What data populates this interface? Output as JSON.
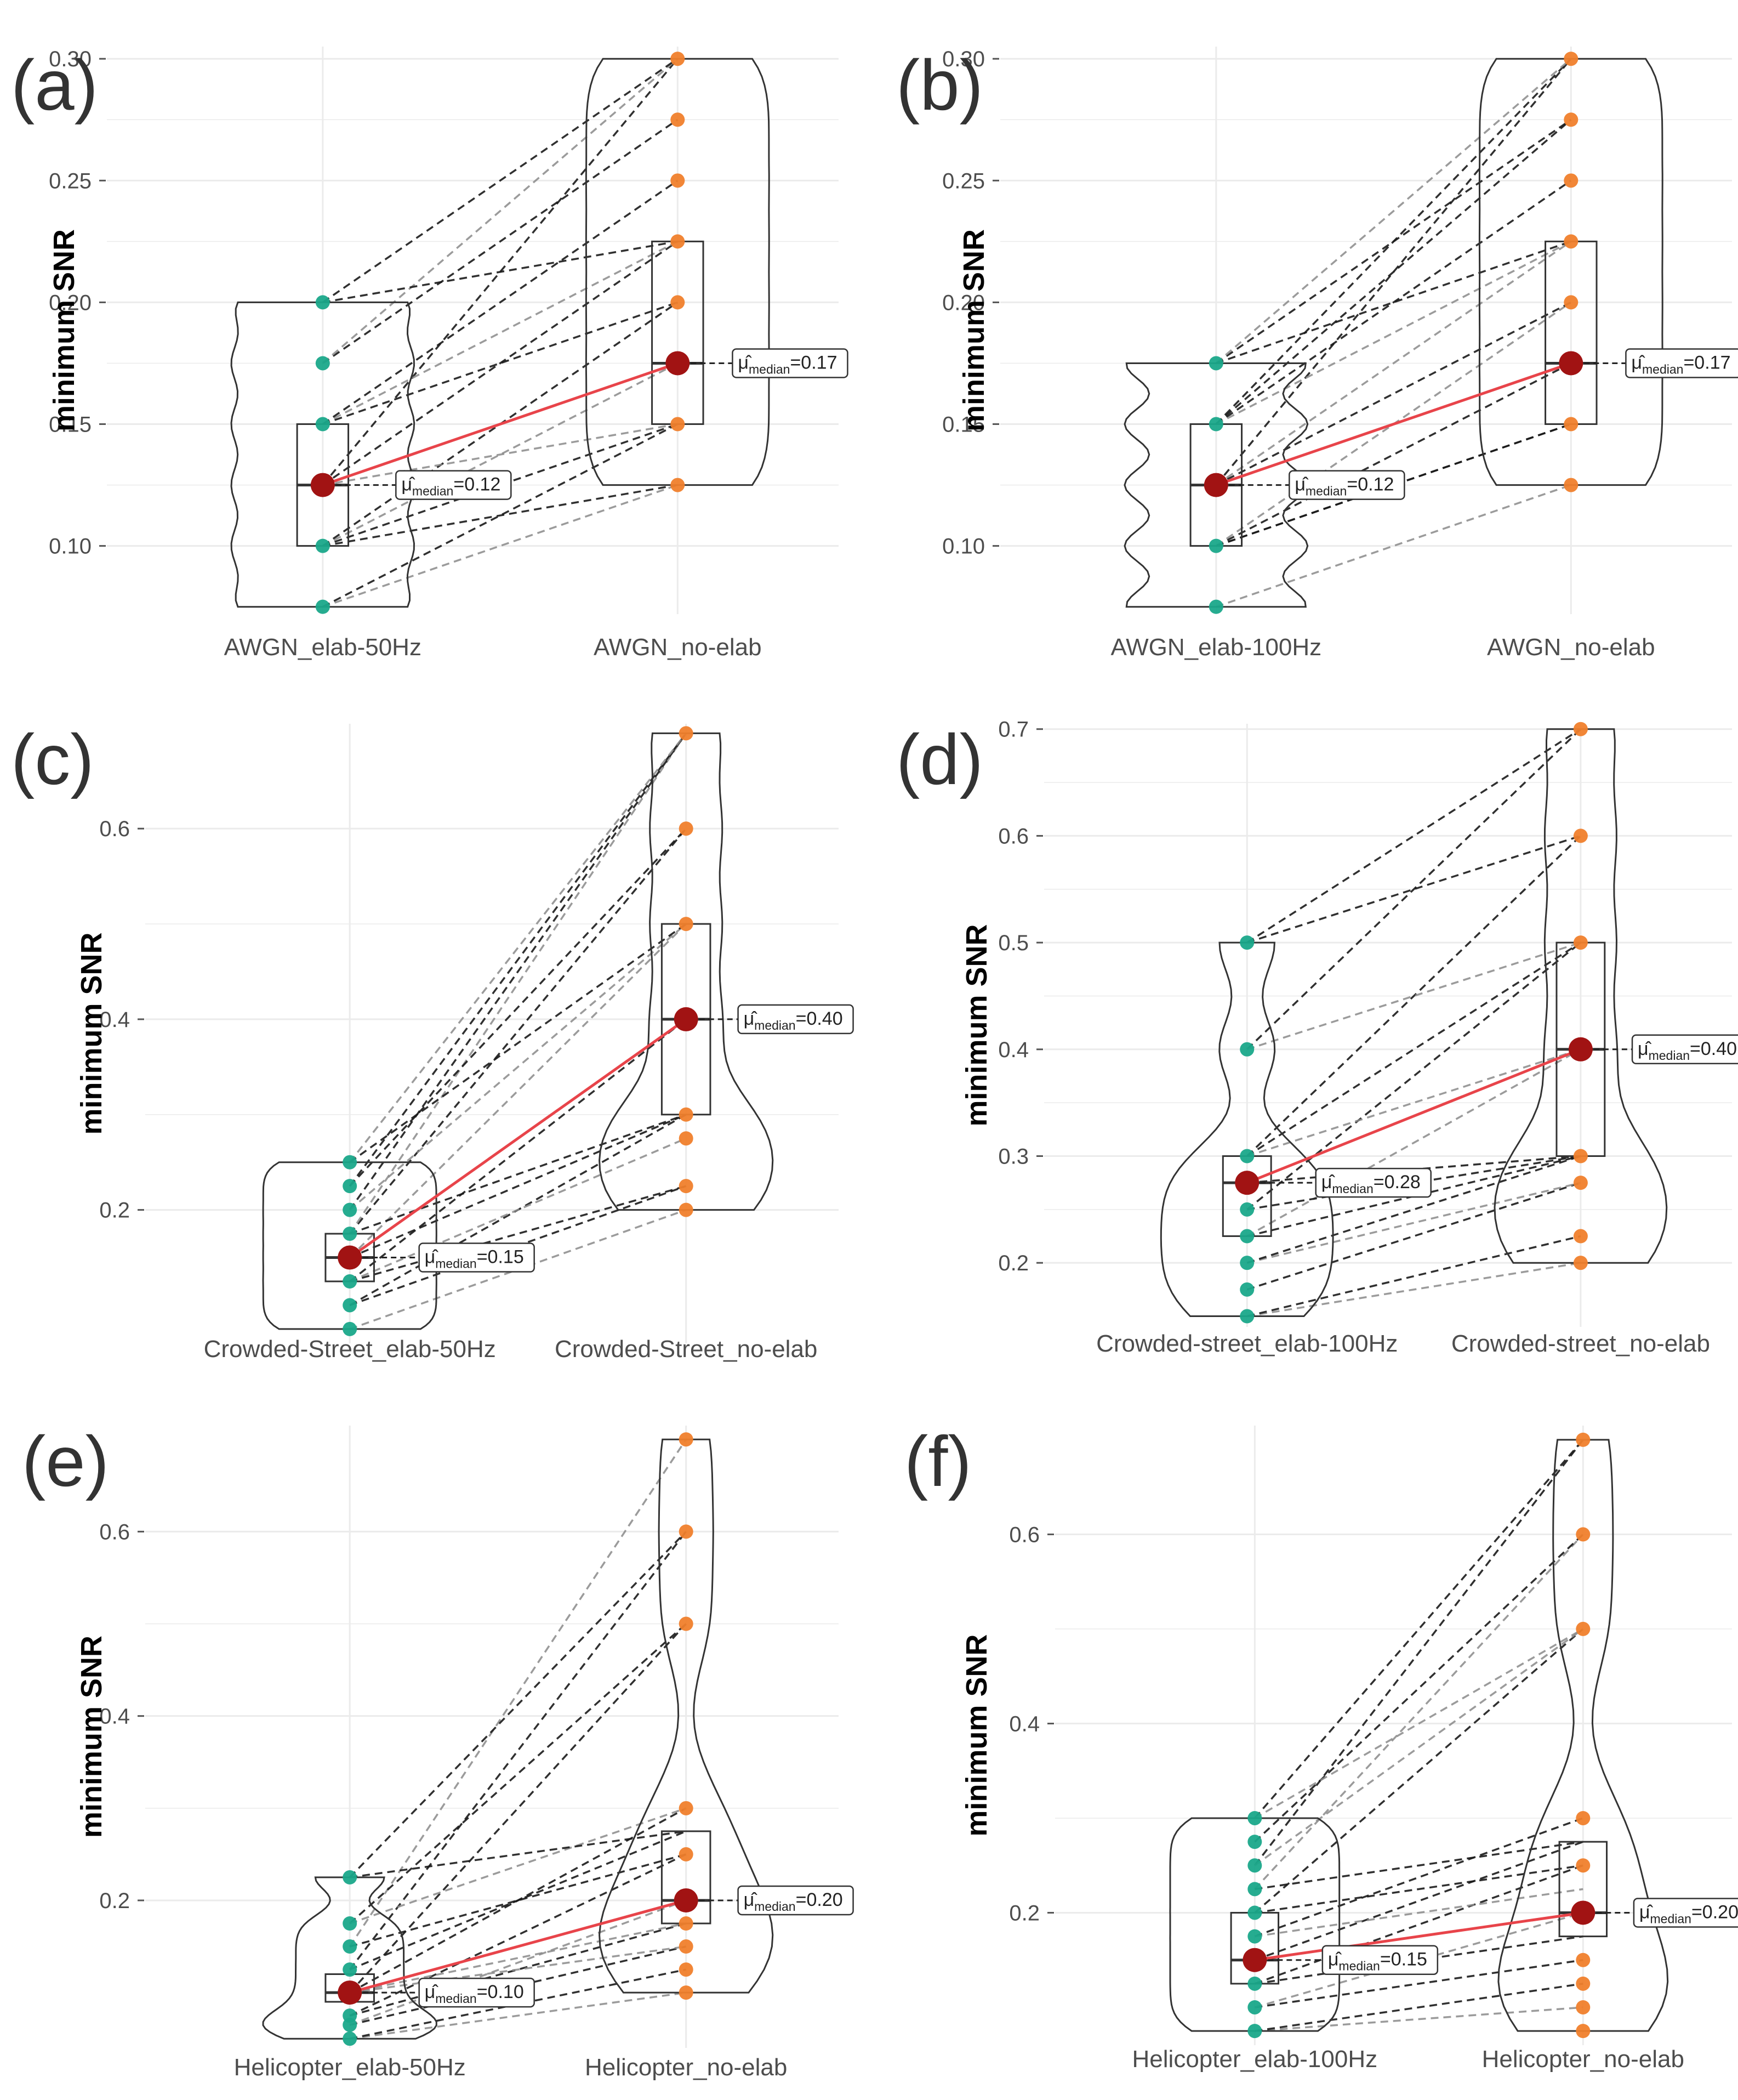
{
  "figure": {
    "ylabel": "minimum SNR",
    "colors": {
      "elab_points": "#1aa88a",
      "noelab_points": "#f07f2c",
      "median_point": "#a11313",
      "median_line": "#e8444a",
      "paired_dark": "#1a1a1a",
      "paired_light": "#8a8a8a",
      "outline": "#333333",
      "grid": "#ebebeb"
    }
  },
  "chart_data": [
    {
      "panel": "(a)",
      "type": "paired-violin-box",
      "categories": [
        "AWGN_elab-50Hz",
        "AWGN_no-elab"
      ],
      "ylabel": "minimum SNR",
      "ylim": [
        0.072,
        0.305
      ],
      "yticks": [
        0.1,
        0.15,
        0.2,
        0.25,
        0.3
      ],
      "tick_format": 2,
      "groups": [
        {
          "name": "AWGN_elab-50Hz",
          "q1": 0.1,
          "median": 0.125,
          "q3": 0.15,
          "points": [
            0.075,
            0.1,
            0.125,
            0.15,
            0.175,
            0.2
          ]
        },
        {
          "name": "AWGN_no-elab",
          "q1": 0.15,
          "median": 0.175,
          "q3": 0.225,
          "points": [
            0.125,
            0.15,
            0.175,
            0.2,
            0.225,
            0.25,
            0.275,
            0.3
          ]
        }
      ],
      "annotations": [
        {
          "prefix": "μ̂",
          "sub": "median",
          "value": "=0.12"
        },
        {
          "prefix": "μ̂",
          "sub": "median",
          "value": "=0.17"
        }
      ],
      "pairs": [
        [
          0.075,
          0.125
        ],
        [
          0.075,
          0.15
        ],
        [
          0.1,
          0.15
        ],
        [
          0.1,
          0.175
        ],
        [
          0.1,
          0.125
        ],
        [
          0.1,
          0.2
        ],
        [
          0.125,
          0.175
        ],
        [
          0.125,
          0.175
        ],
        [
          0.125,
          0.225
        ],
        [
          0.125,
          0.15
        ],
        [
          0.125,
          0.3
        ],
        [
          0.15,
          0.2
        ],
        [
          0.15,
          0.225
        ],
        [
          0.15,
          0.25
        ],
        [
          0.175,
          0.275
        ],
        [
          0.175,
          0.3
        ],
        [
          0.2,
          0.225
        ],
        [
          0.2,
          0.3
        ]
      ]
    },
    {
      "panel": "(b)",
      "type": "paired-violin-box",
      "categories": [
        "AWGN_elab-100Hz",
        "AWGN_no-elab"
      ],
      "ylabel": "minimum SNR",
      "ylim": [
        0.072,
        0.305
      ],
      "yticks": [
        0.1,
        0.15,
        0.2,
        0.25,
        0.3
      ],
      "tick_format": 2,
      "groups": [
        {
          "name": "AWGN_elab-100Hz",
          "q1": 0.1,
          "median": 0.125,
          "q3": 0.15,
          "points": [
            0.075,
            0.1,
            0.125,
            0.15,
            0.175
          ]
        },
        {
          "name": "AWGN_no-elab",
          "q1": 0.15,
          "median": 0.175,
          "q3": 0.225,
          "points": [
            0.125,
            0.15,
            0.175,
            0.2,
            0.225,
            0.25,
            0.275,
            0.3
          ]
        }
      ],
      "annotations": [
        {
          "prefix": "μ̂",
          "sub": "median",
          "value": "=0.12"
        },
        {
          "prefix": "μ̂",
          "sub": "median",
          "value": "=0.17"
        }
      ],
      "pairs": [
        [
          0.075,
          0.125
        ],
        [
          0.1,
          0.15
        ],
        [
          0.1,
          0.175
        ],
        [
          0.1,
          0.2
        ],
        [
          0.1,
          0.15
        ],
        [
          0.125,
          0.175
        ],
        [
          0.125,
          0.225
        ],
        [
          0.125,
          0.2
        ],
        [
          0.125,
          0.3
        ],
        [
          0.125,
          0.175
        ],
        [
          0.15,
          0.25
        ],
        [
          0.15,
          0.275
        ],
        [
          0.15,
          0.225
        ],
        [
          0.15,
          0.3
        ],
        [
          0.175,
          0.275
        ],
        [
          0.175,
          0.3
        ],
        [
          0.175,
          0.225
        ]
      ]
    },
    {
      "panel": "(c)",
      "type": "paired-violin-box",
      "categories": [
        "Crowded-Street_elab-50Hz",
        "Crowded-Street_no-elab"
      ],
      "ylabel": "minimum SNR",
      "ylim": [
        0.06,
        0.71
      ],
      "yticks": [
        0.2,
        0.4,
        0.6
      ],
      "tick_format": 1,
      "groups": [
        {
          "name": "Crowded-Street_elab-50Hz",
          "q1": 0.125,
          "median": 0.15,
          "q3": 0.175,
          "points": [
            0.075,
            0.1,
            0.125,
            0.15,
            0.175,
            0.2,
            0.225,
            0.25
          ]
        },
        {
          "name": "Crowded-Street_no-elab",
          "q1": 0.3,
          "median": 0.4,
          "q3": 0.5,
          "points": [
            0.2,
            0.225,
            0.275,
            0.3,
            0.4,
            0.5,
            0.6,
            0.7
          ]
        }
      ],
      "annotations": [
        {
          "prefix": "μ̂",
          "sub": "median",
          "value": "=0.15"
        },
        {
          "prefix": "μ̂",
          "sub": "median",
          "value": "=0.40"
        }
      ],
      "pairs": [
        [
          0.075,
          0.2
        ],
        [
          0.1,
          0.225
        ],
        [
          0.1,
          0.3
        ],
        [
          0.125,
          0.275
        ],
        [
          0.125,
          0.4
        ],
        [
          0.15,
          0.3
        ],
        [
          0.15,
          0.5
        ],
        [
          0.15,
          0.4
        ],
        [
          0.175,
          0.6
        ],
        [
          0.175,
          0.7
        ],
        [
          0.175,
          0.3
        ],
        [
          0.2,
          0.7
        ],
        [
          0.2,
          0.5
        ],
        [
          0.225,
          0.7
        ],
        [
          0.225,
          0.6
        ],
        [
          0.25,
          0.7
        ],
        [
          0.25,
          0.5
        ],
        [
          0.125,
          0.225
        ]
      ]
    },
    {
      "panel": "(d)",
      "type": "paired-violin-box",
      "categories": [
        "Crowded-street_elab-100Hz",
        "Crowded-street_no-elab"
      ],
      "ylabel": "minimum SNR",
      "ylim": [
        0.14,
        0.705
      ],
      "yticks": [
        0.2,
        0.3,
        0.4,
        0.5,
        0.6,
        0.7
      ],
      "tick_format": 1,
      "groups": [
        {
          "name": "Crowded-street_elab-100Hz",
          "q1": 0.225,
          "median": 0.275,
          "q3": 0.3,
          "points": [
            0.15,
            0.175,
            0.2,
            0.225,
            0.25,
            0.275,
            0.3,
            0.4,
            0.5
          ]
        },
        {
          "name": "Crowded-street_no-elab",
          "q1": 0.3,
          "median": 0.4,
          "q3": 0.5,
          "points": [
            0.2,
            0.225,
            0.275,
            0.3,
            0.4,
            0.5,
            0.6,
            0.7
          ]
        }
      ],
      "annotations": [
        {
          "prefix": "μ̂",
          "sub": "median",
          "value": "=0.28"
        },
        {
          "prefix": "μ̂",
          "sub": "median",
          "value": "=0.40"
        }
      ],
      "pairs": [
        [
          0.15,
          0.2
        ],
        [
          0.15,
          0.225
        ],
        [
          0.175,
          0.275
        ],
        [
          0.2,
          0.275
        ],
        [
          0.2,
          0.3
        ],
        [
          0.225,
          0.3
        ],
        [
          0.225,
          0.4
        ],
        [
          0.25,
          0.3
        ],
        [
          0.25,
          0.5
        ],
        [
          0.275,
          0.4
        ],
        [
          0.275,
          0.3
        ],
        [
          0.3,
          0.6
        ],
        [
          0.3,
          0.4
        ],
        [
          0.3,
          0.5
        ],
        [
          0.4,
          0.7
        ],
        [
          0.4,
          0.5
        ],
        [
          0.5,
          0.7
        ],
        [
          0.5,
          0.6
        ]
      ]
    },
    {
      "panel": "(e)",
      "type": "paired-violin-box",
      "categories": [
        "Helicopter_elab-50Hz",
        "Helicopter_no-elab"
      ],
      "ylabel": "minimum SNR",
      "ylim": [
        0.04,
        0.715
      ],
      "yticks": [
        0.2,
        0.4,
        0.6
      ],
      "tick_format": 1,
      "groups": [
        {
          "name": "Helicopter_elab-50Hz",
          "q1": 0.09,
          "median": 0.1,
          "q3": 0.12,
          "points": [
            0.05,
            0.065,
            0.075,
            0.1,
            0.125,
            0.15,
            0.175,
            0.225
          ]
        },
        {
          "name": "Helicopter_no-elab",
          "q1": 0.175,
          "median": 0.2,
          "q3": 0.275,
          "points": [
            0.1,
            0.125,
            0.15,
            0.175,
            0.2,
            0.25,
            0.3,
            0.5,
            0.6,
            0.7
          ]
        }
      ],
      "annotations": [
        {
          "prefix": "μ̂",
          "sub": "median",
          "value": "=0.10"
        },
        {
          "prefix": "μ̂",
          "sub": "median",
          "value": "=0.20"
        }
      ],
      "pairs": [
        [
          0.05,
          0.1
        ],
        [
          0.05,
          0.125
        ],
        [
          0.065,
          0.15
        ],
        [
          0.065,
          0.2
        ],
        [
          0.075,
          0.175
        ],
        [
          0.075,
          0.25
        ],
        [
          0.1,
          0.2
        ],
        [
          0.1,
          0.3
        ],
        [
          0.1,
          0.5
        ],
        [
          0.1,
          0.175
        ],
        [
          0.125,
          0.6
        ],
        [
          0.125,
          0.275
        ],
        [
          0.15,
          0.7
        ],
        [
          0.15,
          0.25
        ],
        [
          0.175,
          0.5
        ],
        [
          0.175,
          0.3
        ],
        [
          0.225,
          0.6
        ],
        [
          0.225,
          0.275
        ],
        [
          0.1,
          0.15
        ]
      ]
    },
    {
      "panel": "(f)",
      "type": "paired-violin-box",
      "categories": [
        "Helicopter_elab-100Hz",
        "Helicopter_no-elab"
      ],
      "ylabel": "minimum SNR",
      "ylim": [
        0.06,
        0.715
      ],
      "yticks": [
        0.2,
        0.4,
        0.6
      ],
      "tick_format": 1,
      "groups": [
        {
          "name": "Helicopter_elab-100Hz",
          "q1": 0.125,
          "median": 0.15,
          "q3": 0.2,
          "points": [
            0.075,
            0.1,
            0.125,
            0.15,
            0.175,
            0.2,
            0.225,
            0.25,
            0.275,
            0.3
          ]
        },
        {
          "name": "Helicopter_no-elab",
          "q1": 0.175,
          "median": 0.2,
          "q3": 0.275,
          "points": [
            0.075,
            0.1,
            0.125,
            0.15,
            0.2,
            0.25,
            0.3,
            0.5,
            0.6,
            0.7
          ]
        }
      ],
      "annotations": [
        {
          "prefix": "μ̂",
          "sub": "median",
          "value": "=0.15"
        },
        {
          "prefix": "μ̂",
          "sub": "median",
          "value": "=0.20"
        }
      ],
      "pairs": [
        [
          0.075,
          0.1
        ],
        [
          0.075,
          0.125
        ],
        [
          0.1,
          0.15
        ],
        [
          0.1,
          0.2
        ],
        [
          0.125,
          0.175
        ],
        [
          0.125,
          0.25
        ],
        [
          0.15,
          0.2
        ],
        [
          0.15,
          0.275
        ],
        [
          0.175,
          0.3
        ],
        [
          0.175,
          0.225
        ],
        [
          0.2,
          0.5
        ],
        [
          0.2,
          0.25
        ],
        [
          0.225,
          0.6
        ],
        [
          0.225,
          0.275
        ],
        [
          0.25,
          0.7
        ],
        [
          0.25,
          0.5
        ],
        [
          0.275,
          0.6
        ],
        [
          0.3,
          0.7
        ],
        [
          0.3,
          0.5
        ]
      ]
    }
  ]
}
